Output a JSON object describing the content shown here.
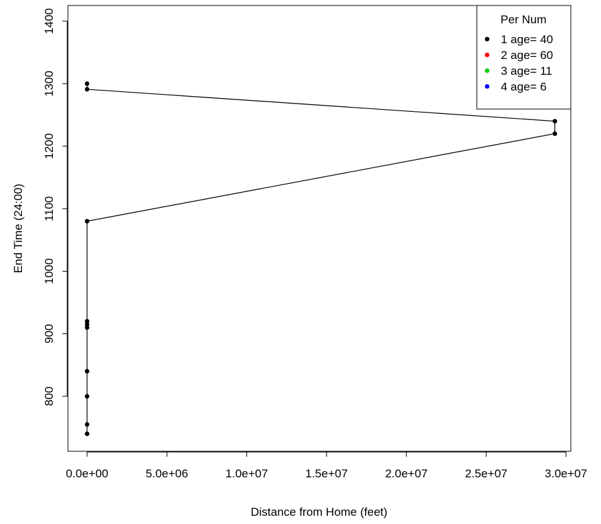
{
  "chart_data": {
    "type": "scatter",
    "xlabel": "Distance from Home (feet)",
    "ylabel": "End Time (24:00)",
    "xlim": [
      -1200000,
      30300000
    ],
    "ylim": [
      712,
      1425
    ],
    "xticks": [
      0,
      5000000,
      10000000,
      15000000,
      20000000,
      25000000,
      30000000
    ],
    "xtick_labels": [
      "0.0e+00",
      "5.0e+06",
      "1.0e+07",
      "1.5e+07",
      "2.0e+07",
      "2.5e+07",
      "3.0e+07"
    ],
    "yticks": [
      800,
      900,
      1000,
      1100,
      1200,
      1300,
      1400
    ],
    "ytick_labels": [
      "800",
      "900",
      "1000",
      "1100",
      "1200",
      "1300",
      "1400"
    ],
    "grid": false,
    "legend": {
      "title": "Per Num",
      "placement": "top-right",
      "entries": [
        {
          "label": "1 age= 40",
          "color": "#000000"
        },
        {
          "label": "2 age= 60",
          "color": "#ff0000"
        },
        {
          "label": "3 age= 11",
          "color": "#00cd00"
        },
        {
          "label": "4 age= 6",
          "color": "#0000ff"
        }
      ]
    },
    "series": [
      {
        "name": "1 age= 40",
        "color": "#000000",
        "points": [
          {
            "x": 0,
            "y": 740
          },
          {
            "x": 0,
            "y": 755
          },
          {
            "x": 0,
            "y": 800
          },
          {
            "x": 0,
            "y": 840
          },
          {
            "x": 0,
            "y": 910
          },
          {
            "x": 0,
            "y": 915
          },
          {
            "x": 0,
            "y": 920
          },
          {
            "x": 0,
            "y": 1080
          },
          {
            "x": 29300000,
            "y": 1220
          },
          {
            "x": 29300000,
            "y": 1240
          },
          {
            "x": 0,
            "y": 1291
          },
          {
            "x": 0,
            "y": 1300
          }
        ]
      }
    ]
  }
}
